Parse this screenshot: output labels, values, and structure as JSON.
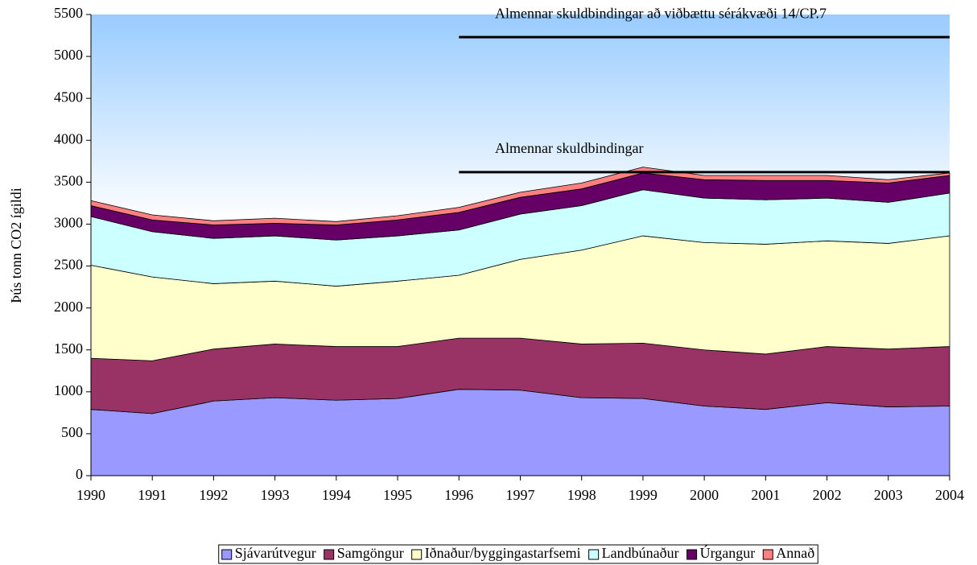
{
  "chart_data": {
    "type": "stacked-area",
    "y_label": "Þús tonn CO2 ígildi",
    "x": [
      1990,
      1991,
      1992,
      1993,
      1994,
      1995,
      1996,
      1997,
      1998,
      1999,
      2000,
      2001,
      2002,
      2003,
      2004
    ],
    "xlim": [
      1990,
      2004
    ],
    "xticks": [
      1990,
      1991,
      1992,
      1993,
      1994,
      1995,
      1996,
      1997,
      1998,
      1999,
      2000,
      2001,
      2002,
      2003,
      2004
    ],
    "ylim": [
      0,
      5500
    ],
    "yticks": [
      0,
      500,
      1000,
      1500,
      2000,
      2500,
      3000,
      3500,
      4000,
      4500,
      5000,
      5500
    ],
    "series": [
      {
        "name": "Sjávarútvegur",
        "color": "#9999ff",
        "values": [
          790,
          740,
          890,
          930,
          900,
          920,
          1030,
          1020,
          930,
          920,
          830,
          790,
          870,
          820,
          830
        ]
      },
      {
        "name": "Samgöngur",
        "color": "#993366",
        "values": [
          610,
          630,
          620,
          640,
          640,
          620,
          610,
          620,
          640,
          660,
          670,
          660,
          670,
          690,
          710
        ]
      },
      {
        "name": "Iðnaður/byggingastarfsemi",
        "color": "#ffffcc",
        "values": [
          1110,
          1000,
          780,
          750,
          720,
          780,
          750,
          940,
          1120,
          1280,
          1280,
          1310,
          1260,
          1260,
          1320
        ]
      },
      {
        "name": "Landbúnaður",
        "color": "#ccffff",
        "values": [
          580,
          540,
          540,
          540,
          550,
          540,
          540,
          540,
          530,
          550,
          530,
          530,
          510,
          490,
          510
        ]
      },
      {
        "name": "Úrgangur",
        "color": "#660066",
        "values": [
          130,
          140,
          160,
          150,
          180,
          190,
          210,
          200,
          200,
          200,
          220,
          230,
          210,
          230,
          210
        ]
      },
      {
        "name": "Annað",
        "color": "#ff8080",
        "values": [
          60,
          60,
          50,
          60,
          40,
          50,
          60,
          60,
          70,
          70,
          50,
          60,
          60,
          40,
          30
        ]
      }
    ],
    "reference_lines": [
      {
        "value": 5230,
        "from": 1996,
        "to": 2004,
        "label": "Almennar skuldbindingar að viðbættu sérákvæði 14/CP.7"
      },
      {
        "value": 3620,
        "from": 1996,
        "to": 2004,
        "label": "Almennar skuldbindingar"
      }
    ]
  }
}
